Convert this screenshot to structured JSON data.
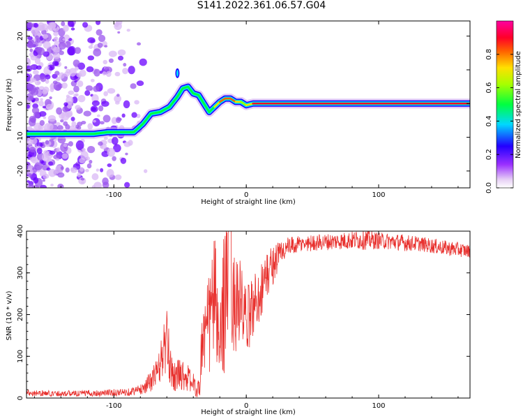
{
  "figure": {
    "title": "S141.2022.361.06.57.G04"
  },
  "chart_data": [
    {
      "type": "heatmap",
      "title": "",
      "xlabel": "Height of straight line (km)",
      "ylabel": "Frequency (Hz)",
      "xlim": [
        -166,
        169
      ],
      "ylim": [
        -25,
        24.5
      ],
      "xticks": [
        -100,
        0,
        100
      ],
      "yticks": [
        -20,
        -10,
        0,
        10,
        20
      ],
      "colorbar": {
        "label": "Normalized spectral amplitude",
        "range": [
          0,
          1
        ],
        "ticks": [
          0.0,
          0.2,
          0.4,
          0.6,
          0.8
        ],
        "colormap": "hsv-like (white, violet, blue, cyan, green, yellow, orange, red, magenta)"
      },
      "ridge": {
        "x": [
          -166,
          -115,
          -105,
          -95,
          -85,
          -78,
          -72,
          -65,
          -58,
          -52,
          -48,
          -44,
          -40,
          -36,
          -32,
          -28,
          -24,
          -20,
          -16,
          -12,
          -8,
          -4,
          0,
          5,
          10,
          15,
          30,
          60,
          100,
          140,
          169
        ],
        "y": [
          -9,
          -9,
          -8.5,
          -8.5,
          -8.5,
          -6,
          -3,
          -2.5,
          -1,
          2,
          4.5,
          5,
          3,
          2.5,
          0,
          -2.5,
          -1,
          0.5,
          1.5,
          1.5,
          0.5,
          0.5,
          -0.5,
          0,
          0,
          0,
          0,
          0,
          0,
          0,
          0
        ],
        "amplitude": [
          0.3,
          0.35,
          0.45,
          0.45,
          0.4,
          0.4,
          0.4,
          0.45,
          0.45,
          0.4,
          0.45,
          0.4,
          0.45,
          0.5,
          0.45,
          0.4,
          0.5,
          0.8,
          0.75,
          0.8,
          0.75,
          0.6,
          0.6,
          0.8,
          0.85,
          0.9,
          0.9,
          0.9,
          0.9,
          0.9,
          0.9
        ]
      },
      "noise_region_x": [
        -166,
        -80
      ]
    },
    {
      "type": "line",
      "title": "",
      "xlabel": "Height of straight line (km)",
      "ylabel": "SNR (10 * v/v)",
      "xlim": [
        -166,
        169
      ],
      "ylim": [
        0,
        400
      ],
      "xticks": [
        -100,
        0,
        100
      ],
      "yticks": [
        0,
        100,
        200,
        300,
        400
      ],
      "color": "#e8312e",
      "series": [
        {
          "x": [
            -166,
            -150,
            -130,
            -110,
            -90,
            -80,
            -72,
            -66,
            -62,
            -60,
            -58,
            -54,
            -50,
            -45,
            -40,
            -37,
            -35,
            -33,
            -30,
            -27,
            -24,
            -20,
            -17,
            -14,
            -12,
            -10,
            -8,
            -5,
            0,
            5,
            10,
            15,
            20,
            25,
            30,
            40,
            50,
            60,
            70,
            80,
            90,
            100,
            110,
            120,
            130,
            140,
            150,
            160,
            169
          ],
          "y": [
            13,
            11,
            11,
            12,
            14,
            20,
            40,
            70,
            120,
            130,
            90,
            50,
            60,
            50,
            35,
            15,
            40,
            160,
            150,
            200,
            260,
            100,
            250,
            300,
            400,
            220,
            240,
            230,
            180,
            220,
            250,
            290,
            320,
            345,
            360,
            368,
            372,
            374,
            376,
            378,
            380,
            377,
            375,
            372,
            370,
            365,
            360,
            356,
            352
          ],
          "noise_amplitude": [
            8,
            7,
            7,
            8,
            9,
            12,
            25,
            40,
            70,
            80,
            60,
            35,
            40,
            35,
            25,
            15,
            45,
            120,
            110,
            150,
            160,
            70,
            200,
            170,
            230,
            120,
            130,
            110,
            80,
            80,
            70,
            60,
            50,
            35,
            25,
            20,
            20,
            20,
            20,
            22,
            25,
            20,
            20,
            20,
            18,
            18,
            18,
            18,
            15
          ]
        }
      ]
    }
  ]
}
